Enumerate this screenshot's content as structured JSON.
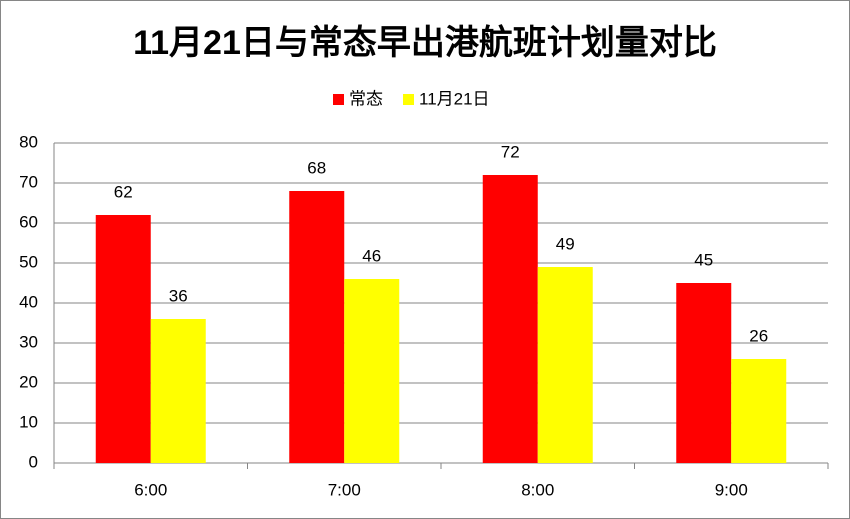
{
  "chart_data": {
    "type": "bar",
    "title": "11月21日与常态早出港航班计划量对比",
    "categories": [
      "6:00",
      "7:00",
      "8:00",
      "9:00"
    ],
    "series": [
      {
        "name": "常态",
        "color": "#ff0000",
        "values": [
          62,
          68,
          72,
          45
        ]
      },
      {
        "name": "11月21日",
        "color": "#ffff00",
        "values": [
          36,
          46,
          49,
          26
        ]
      }
    ],
    "ylim": [
      0,
      80
    ],
    "yticks": [
      0,
      10,
      20,
      30,
      40,
      50,
      60,
      70,
      80
    ],
    "grid": true,
    "legend": "top"
  }
}
